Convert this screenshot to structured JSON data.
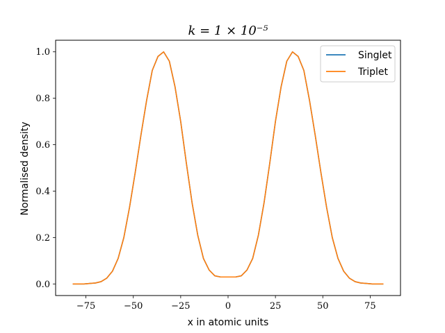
{
  "chart_data": {
    "type": "line",
    "title": "k = 1 × 10⁻⁵",
    "xlabel": "x in atomic units",
    "ylabel": "Normalised density",
    "xlim": [
      -91,
      91
    ],
    "ylim": [
      -0.05,
      1.05
    ],
    "xticks": [
      -75,
      -50,
      -25,
      0,
      25,
      50,
      75
    ],
    "xtick_labels": [
      "−75",
      "−50",
      "−25",
      "0",
      "25",
      "50",
      "75"
    ],
    "yticks": [
      0.0,
      0.2,
      0.4,
      0.6,
      0.8,
      1.0
    ],
    "ytick_labels": [
      "0.0",
      "0.2",
      "0.4",
      "0.6",
      "0.8",
      "1.0"
    ],
    "grid": false,
    "legend_position": "top-right",
    "x": [
      -82,
      -79,
      -76,
      -73,
      -70,
      -67,
      -64,
      -61,
      -58,
      -55,
      -52,
      -49,
      -46,
      -43,
      -40,
      -37,
      -34,
      -31,
      -28,
      -25,
      -22,
      -19,
      -16,
      -13,
      -10,
      -7,
      -4,
      -1,
      1,
      4,
      7,
      10,
      13,
      16,
      19,
      22,
      25,
      28,
      31,
      34,
      37,
      40,
      43,
      46,
      49,
      52,
      55,
      58,
      61,
      64,
      67,
      70,
      73,
      76,
      79,
      82
    ],
    "series": [
      {
        "name": "Singlet",
        "color": "#1f77b4",
        "values": [
          0.0,
          0.0,
          0.0,
          0.002,
          0.004,
          0.01,
          0.025,
          0.055,
          0.11,
          0.2,
          0.33,
          0.48,
          0.64,
          0.79,
          0.92,
          0.98,
          1.0,
          0.96,
          0.85,
          0.7,
          0.52,
          0.35,
          0.21,
          0.11,
          0.06,
          0.035,
          0.03,
          0.03,
          0.03,
          0.03,
          0.035,
          0.06,
          0.11,
          0.21,
          0.35,
          0.52,
          0.7,
          0.85,
          0.96,
          1.0,
          0.98,
          0.92,
          0.79,
          0.64,
          0.48,
          0.33,
          0.2,
          0.11,
          0.055,
          0.025,
          0.01,
          0.004,
          0.002,
          0.0,
          0.0,
          0.0
        ]
      },
      {
        "name": "Triplet",
        "color": "#ff7f0e",
        "values": [
          0.0,
          0.0,
          0.0,
          0.002,
          0.004,
          0.01,
          0.025,
          0.055,
          0.11,
          0.2,
          0.33,
          0.48,
          0.64,
          0.79,
          0.92,
          0.98,
          1.0,
          0.96,
          0.85,
          0.7,
          0.52,
          0.35,
          0.21,
          0.11,
          0.06,
          0.035,
          0.03,
          0.03,
          0.03,
          0.03,
          0.035,
          0.06,
          0.11,
          0.21,
          0.35,
          0.52,
          0.7,
          0.85,
          0.96,
          1.0,
          0.98,
          0.92,
          0.79,
          0.64,
          0.48,
          0.33,
          0.2,
          0.11,
          0.055,
          0.025,
          0.01,
          0.004,
          0.002,
          0.0,
          0.0,
          0.0
        ]
      }
    ]
  }
}
